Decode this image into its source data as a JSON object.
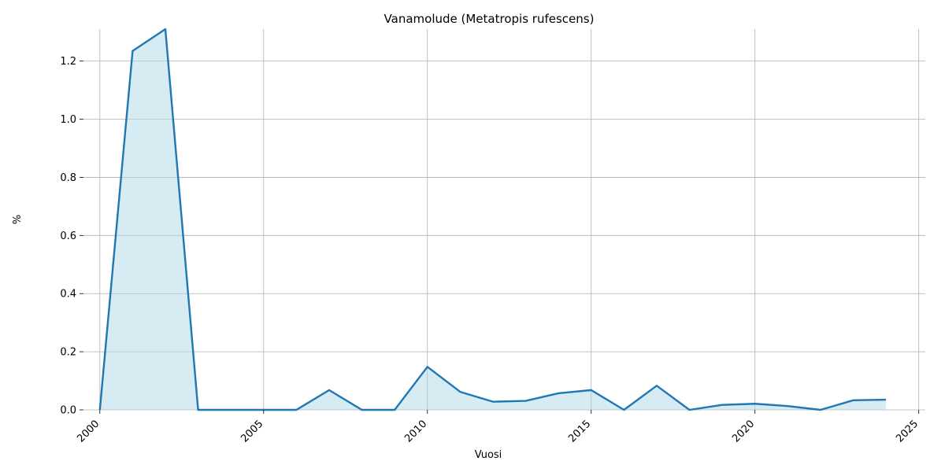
{
  "chart_data": {
    "type": "area",
    "title": "Vanamolude (Metatropis rufescens)",
    "xlabel": "Vuosi",
    "ylabel": "%",
    "x": [
      2000,
      2001,
      2002,
      2003,
      2004,
      2005,
      2006,
      2007,
      2008,
      2009,
      2010,
      2011,
      2012,
      2013,
      2014,
      2015,
      2016,
      2017,
      2018,
      2019,
      2020,
      2021,
      2022,
      2023,
      2024
    ],
    "values": [
      0,
      1.235,
      1.31,
      0,
      0,
      0,
      0,
      0.068,
      0,
      0,
      0.148,
      0.062,
      0.028,
      0.031,
      0.057,
      0.068,
      0,
      0.083,
      0,
      0.017,
      0.021,
      0.013,
      0,
      0.033,
      0.035
    ],
    "xlim": [
      1999.5,
      2025.2
    ],
    "ylim": [
      0,
      1.31
    ],
    "xticks": [
      "2000",
      "2005",
      "2010",
      "2015",
      "2020",
      "2025"
    ],
    "yticks": [
      "0.0",
      "0.2",
      "0.4",
      "0.6",
      "0.8",
      "1.0",
      "1.2"
    ],
    "grid": true,
    "colors": {
      "line": "#1f77b4",
      "fill": "#add8e6",
      "grid": "#b0b0b0"
    }
  }
}
